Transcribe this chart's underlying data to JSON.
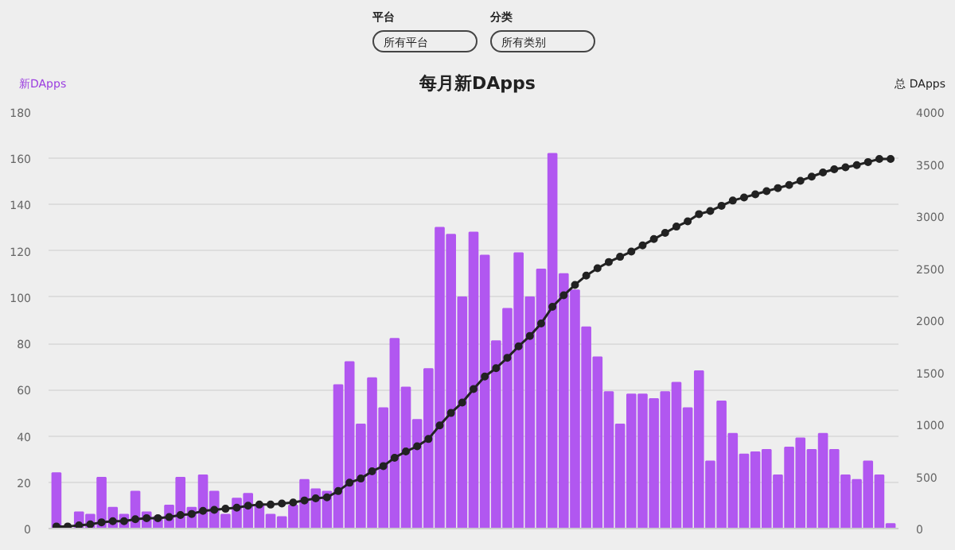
{
  "chart_data": {
    "type": "bar",
    "title": "每月新DApps",
    "ylabel": "新DApps",
    "y2label": "总 DApps",
    "annotations": [
      "平台",
      "所有平台",
      "分类",
      "所有类别"
    ],
    "categories": [
      null,
      null,
      null,
      null,
      null,
      null,
      null,
      null,
      null,
      null,
      null,
      null,
      null,
      null,
      null,
      null,
      null,
      null,
      null,
      null,
      null,
      null,
      null,
      null,
      null,
      null,
      null,
      null,
      null,
      null,
      null,
      null,
      null,
      null,
      null,
      null,
      null,
      null,
      null,
      null,
      null,
      null,
      null,
      null,
      null,
      null,
      null,
      null,
      null,
      null,
      null,
      null,
      null,
      null,
      null,
      null,
      null,
      null,
      null,
      null,
      null,
      null,
      null,
      null,
      null,
      null,
      null,
      null,
      null,
      null,
      null,
      null,
      null,
      null,
      null
    ],
    "series": [
      {
        "color": "#b157f0",
        "values": [
          24,
          0,
          7,
          6,
          22,
          9,
          6,
          16,
          7,
          5,
          10,
          22,
          9,
          23,
          16,
          6,
          13,
          15,
          10,
          6,
          5,
          10,
          21,
          17,
          16,
          62,
          72,
          45,
          65,
          52,
          82,
          61,
          47,
          69,
          130,
          127,
          100,
          128,
          118,
          81,
          95,
          119,
          100,
          112,
          162,
          110,
          103,
          87,
          74,
          59,
          45,
          58,
          58,
          56,
          59,
          63,
          52,
          68,
          29,
          55,
          41,
          32,
          33,
          34,
          23,
          35,
          39,
          34,
          41,
          34,
          23,
          21,
          29,
          23,
          2
        ]
      },
      {
        "type": "line",
        "axis": "y2",
        "color": "#222222",
        "marker": "circle",
        "values": [
          20,
          20,
          30,
          40,
          60,
          70,
          70,
          90,
          100,
          100,
          110,
          130,
          140,
          170,
          180,
          190,
          200,
          220,
          230,
          230,
          240,
          250,
          270,
          290,
          300,
          360,
          440,
          480,
          550,
          600,
          680,
          740,
          790,
          860,
          990,
          1110,
          1210,
          1340,
          1460,
          1540,
          1640,
          1750,
          1850,
          1970,
          2130,
          2240,
          2340,
          2430,
          2500,
          2560,
          2610,
          2660,
          2720,
          2780,
          2840,
          2900,
          2950,
          3020,
          3050,
          3100,
          3150,
          3180,
          3210,
          3240,
          3270,
          3300,
          3340,
          3380,
          3420,
          3450,
          3470,
          3490,
          3520,
          3550,
          3550
        ]
      }
    ],
    "ylim": [
      0,
      180
    ],
    "yticks": [
      0,
      20,
      40,
      60,
      80,
      100,
      120,
      140,
      160,
      180
    ],
    "y2lim": [
      0,
      4000
    ],
    "y2ticks": [
      0,
      500,
      1000,
      1500,
      2000,
      2500,
      3000,
      3500,
      4000
    ],
    "grid": "y"
  }
}
